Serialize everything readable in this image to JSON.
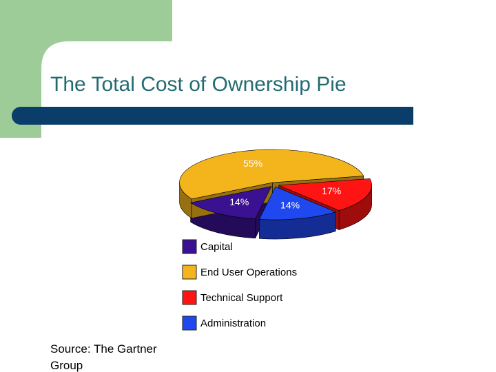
{
  "chart_data": {
    "type": "pie",
    "title": "The Total Cost of Ownership Pie",
    "categories": [
      "Capital",
      "End User Operations",
      "Technical Support",
      "Administration"
    ],
    "values": [
      14,
      55,
      17,
      14
    ],
    "value_labels": [
      "14%",
      "55%",
      "17%",
      "14%"
    ],
    "colors": [
      "#3a1190",
      "#f4b41c",
      "#ff1414",
      "#1f48ee"
    ],
    "source": "Source: The Gartner Group"
  }
}
